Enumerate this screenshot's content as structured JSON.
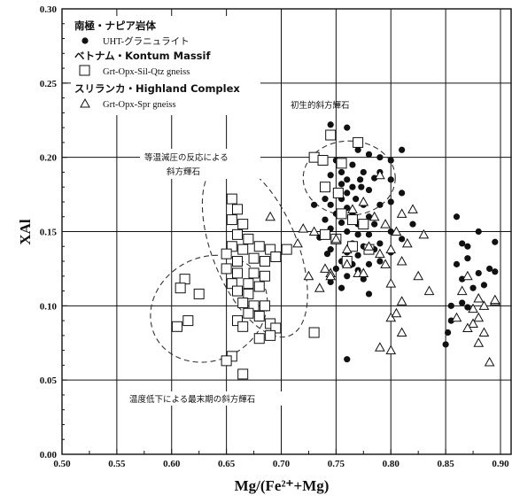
{
  "chart_data": {
    "type": "scatter",
    "xlabel": "Mg/(Fe²⁺+Mg)",
    "ylabel": "XAl",
    "xlim": [
      0.5,
      0.92
    ],
    "ylim": [
      0.0,
      0.3
    ],
    "xticks": [
      "0.50",
      "0.55",
      "0.60",
      "0.65",
      "0.70",
      "0.75",
      "0.80",
      "0.85",
      "0.90"
    ],
    "yticks": [
      "0.00",
      "0.05",
      "0.10",
      "0.15",
      "0.20",
      "0.25",
      "0.30"
    ],
    "legend": {
      "group1_title": "南極・ナピア岩体",
      "group1_label": "UHT-グラニュライト",
      "group2_title": "ベトナム・Kontum Massif",
      "group2_label": "Grt-Opx-Sil-Qtz gneiss",
      "group3_title": "スリランカ・Highland Complex",
      "group3_label": "Grt-Opx-Spr gneiss"
    },
    "annotations": {
      "primary": "初生的斜方輝石",
      "isothermal_line1": "等温減圧の反応による",
      "isothermal_line2": "斜方輝石",
      "cooling": "温度低下による最末期の斜方輝石"
    },
    "series": [
      {
        "name": "UHT-グラニュライト",
        "marker": "circle",
        "points": [
          [
            0.745,
            0.222
          ],
          [
            0.76,
            0.22
          ],
          [
            0.78,
            0.202
          ],
          [
            0.77,
            0.205
          ],
          [
            0.79,
            0.2
          ],
          [
            0.8,
            0.198
          ],
          [
            0.81,
            0.205
          ],
          [
            0.75,
            0.198
          ],
          [
            0.765,
            0.195
          ],
          [
            0.755,
            0.19
          ],
          [
            0.775,
            0.19
          ],
          [
            0.79,
            0.19
          ],
          [
            0.745,
            0.188
          ],
          [
            0.76,
            0.185
          ],
          [
            0.772,
            0.185
          ],
          [
            0.785,
            0.186
          ],
          [
            0.8,
            0.185
          ],
          [
            0.755,
            0.182
          ],
          [
            0.765,
            0.18
          ],
          [
            0.773,
            0.18
          ],
          [
            0.74,
            0.18
          ],
          [
            0.75,
            0.176
          ],
          [
            0.76,
            0.176
          ],
          [
            0.78,
            0.178
          ],
          [
            0.81,
            0.176
          ],
          [
            0.74,
            0.172
          ],
          [
            0.755,
            0.172
          ],
          [
            0.768,
            0.172
          ],
          [
            0.73,
            0.168
          ],
          [
            0.745,
            0.168
          ],
          [
            0.76,
            0.166
          ],
          [
            0.775,
            0.168
          ],
          [
            0.79,
            0.168
          ],
          [
            0.8,
            0.17
          ],
          [
            0.75,
            0.162
          ],
          [
            0.765,
            0.162
          ],
          [
            0.78,
            0.16
          ],
          [
            0.74,
            0.158
          ],
          [
            0.755,
            0.156
          ],
          [
            0.77,
            0.155
          ],
          [
            0.785,
            0.155
          ],
          [
            0.745,
            0.152
          ],
          [
            0.76,
            0.15
          ],
          [
            0.77,
            0.148
          ],
          [
            0.78,
            0.148
          ],
          [
            0.8,
            0.15
          ],
          [
            0.735,
            0.146
          ],
          [
            0.75,
            0.144
          ],
          [
            0.765,
            0.142
          ],
          [
            0.775,
            0.14
          ],
          [
            0.79,
            0.142
          ],
          [
            0.81,
            0.145
          ],
          [
            0.745,
            0.138
          ],
          [
            0.76,
            0.136
          ],
          [
            0.77,
            0.134
          ],
          [
            0.785,
            0.138
          ],
          [
            0.8,
            0.136
          ],
          [
            0.755,
            0.13
          ],
          [
            0.765,
            0.128
          ],
          [
            0.78,
            0.128
          ],
          [
            0.75,
            0.125
          ],
          [
            0.77,
            0.124
          ],
          [
            0.76,
            0.12
          ],
          [
            0.775,
            0.118
          ],
          [
            0.745,
            0.116
          ],
          [
            0.755,
            0.112
          ],
          [
            0.742,
            0.135
          ],
          [
            0.79,
            0.13
          ],
          [
            0.82,
            0.155
          ],
          [
            0.78,
            0.108
          ],
          [
            0.76,
            0.064
          ],
          [
            0.86,
            0.16
          ],
          [
            0.865,
            0.142
          ],
          [
            0.87,
            0.14
          ],
          [
            0.88,
            0.15
          ],
          [
            0.895,
            0.143
          ],
          [
            0.86,
            0.128
          ],
          [
            0.87,
            0.132
          ],
          [
            0.88,
            0.122
          ],
          [
            0.89,
            0.125
          ],
          [
            0.895,
            0.123
          ],
          [
            0.865,
            0.118
          ],
          [
            0.875,
            0.112
          ],
          [
            0.885,
            0.114
          ],
          [
            0.855,
            0.1
          ],
          [
            0.865,
            0.102
          ],
          [
            0.87,
            0.099
          ],
          [
            0.855,
            0.09
          ],
          [
            0.852,
            0.082
          ],
          [
            0.85,
            0.074
          ]
        ]
      },
      {
        "name": "Grt-Opx-Sil-Qtz gneiss",
        "marker": "square",
        "points": [
          [
            0.745,
            0.215
          ],
          [
            0.77,
            0.21
          ],
          [
            0.73,
            0.2
          ],
          [
            0.738,
            0.198
          ],
          [
            0.755,
            0.196
          ],
          [
            0.74,
            0.18
          ],
          [
            0.752,
            0.176
          ],
          [
            0.755,
            0.162
          ],
          [
            0.765,
            0.158
          ],
          [
            0.775,
            0.155
          ],
          [
            0.74,
            0.148
          ],
          [
            0.75,
            0.145
          ],
          [
            0.765,
            0.14
          ],
          [
            0.78,
            0.138
          ],
          [
            0.76,
            0.13
          ],
          [
            0.655,
            0.172
          ],
          [
            0.66,
            0.165
          ],
          [
            0.655,
            0.158
          ],
          [
            0.665,
            0.155
          ],
          [
            0.66,
            0.148
          ],
          [
            0.67,
            0.145
          ],
          [
            0.655,
            0.14
          ],
          [
            0.665,
            0.138
          ],
          [
            0.68,
            0.14
          ],
          [
            0.69,
            0.138
          ],
          [
            0.705,
            0.138
          ],
          [
            0.65,
            0.135
          ],
          [
            0.66,
            0.13
          ],
          [
            0.675,
            0.132
          ],
          [
            0.685,
            0.13
          ],
          [
            0.695,
            0.133
          ],
          [
            0.65,
            0.125
          ],
          [
            0.66,
            0.122
          ],
          [
            0.675,
            0.122
          ],
          [
            0.685,
            0.12
          ],
          [
            0.655,
            0.115
          ],
          [
            0.67,
            0.115
          ],
          [
            0.68,
            0.113
          ],
          [
            0.66,
            0.11
          ],
          [
            0.67,
            0.108
          ],
          [
            0.665,
            0.102
          ],
          [
            0.675,
            0.1
          ],
          [
            0.685,
            0.1
          ],
          [
            0.67,
            0.095
          ],
          [
            0.68,
            0.093
          ],
          [
            0.66,
            0.09
          ],
          [
            0.69,
            0.088
          ],
          [
            0.665,
            0.086
          ],
          [
            0.695,
            0.085
          ],
          [
            0.69,
            0.08
          ],
          [
            0.68,
            0.078
          ],
          [
            0.73,
            0.082
          ],
          [
            0.612,
            0.118
          ],
          [
            0.608,
            0.112
          ],
          [
            0.625,
            0.108
          ],
          [
            0.615,
            0.09
          ],
          [
            0.605,
            0.086
          ],
          [
            0.655,
            0.066
          ],
          [
            0.65,
            0.063
          ],
          [
            0.665,
            0.054
          ]
        ]
      },
      {
        "name": "Grt-Opx-Spr gneiss",
        "marker": "triangle",
        "points": [
          [
            0.79,
            0.188
          ],
          [
            0.72,
            0.152
          ],
          [
            0.73,
            0.15
          ],
          [
            0.775,
            0.17
          ],
          [
            0.765,
            0.165
          ],
          [
            0.785,
            0.16
          ],
          [
            0.795,
            0.155
          ],
          [
            0.805,
            0.15
          ],
          [
            0.75,
            0.145
          ],
          [
            0.76,
            0.138
          ],
          [
            0.78,
            0.14
          ],
          [
            0.79,
            0.135
          ],
          [
            0.76,
            0.128
          ],
          [
            0.77,
            0.122
          ],
          [
            0.74,
            0.125
          ],
          [
            0.745,
            0.122
          ],
          [
            0.775,
            0.122
          ],
          [
            0.81,
            0.162
          ],
          [
            0.82,
            0.165
          ],
          [
            0.83,
            0.148
          ],
          [
            0.815,
            0.142
          ],
          [
            0.8,
            0.138
          ],
          [
            0.795,
            0.128
          ],
          [
            0.81,
            0.13
          ],
          [
            0.8,
            0.115
          ],
          [
            0.81,
            0.103
          ],
          [
            0.8,
            0.092
          ],
          [
            0.805,
            0.095
          ],
          [
            0.79,
            0.072
          ],
          [
            0.8,
            0.07
          ],
          [
            0.825,
            0.12
          ],
          [
            0.835,
            0.11
          ],
          [
            0.81,
            0.082
          ],
          [
            0.69,
            0.16
          ],
          [
            0.715,
            0.142
          ],
          [
            0.725,
            0.12
          ],
          [
            0.735,
            0.112
          ],
          [
            0.745,
            0.12
          ],
          [
            0.865,
            0.11
          ],
          [
            0.87,
            0.12
          ],
          [
            0.88,
            0.105
          ],
          [
            0.875,
            0.098
          ],
          [
            0.885,
            0.1
          ],
          [
            0.88,
            0.092
          ],
          [
            0.875,
            0.088
          ],
          [
            0.885,
            0.082
          ],
          [
            0.88,
            0.075
          ],
          [
            0.89,
            0.062
          ],
          [
            0.895,
            0.103
          ],
          [
            0.895,
            0.104
          ],
          [
            0.86,
            0.092
          ],
          [
            0.87,
            0.085
          ]
        ]
      }
    ],
    "grid": true
  }
}
